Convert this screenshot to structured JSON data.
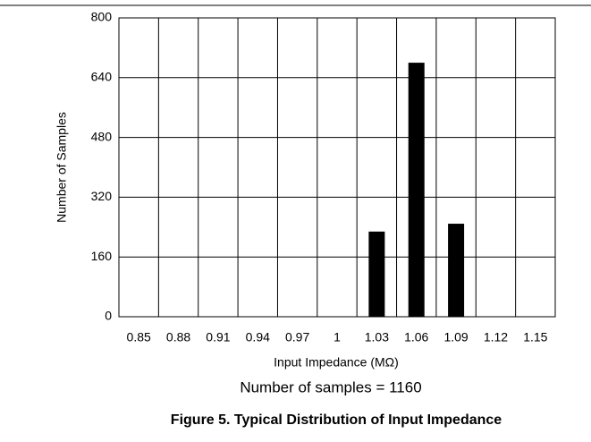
{
  "chart_data": {
    "type": "bar",
    "categories": [
      "0.85",
      "0.88",
      "0.91",
      "0.94",
      "0.97",
      "1",
      "1.03",
      "1.06",
      "1.09",
      "1.12",
      "1.15"
    ],
    "values": [
      0,
      0,
      0,
      0,
      0,
      0,
      228,
      680,
      249,
      0,
      0
    ],
    "color": "#000000",
    "ylim": [
      0,
      800
    ],
    "yticks": [
      0,
      160,
      320,
      480,
      640,
      800
    ],
    "grid": true,
    "xlabel": "Input Impedance (MΩ)",
    "ylabel": "Number of Samples",
    "annotation": "Number of samples = 1160",
    "caption": "Figure 5. Typical Distribution of Input Impedance"
  }
}
